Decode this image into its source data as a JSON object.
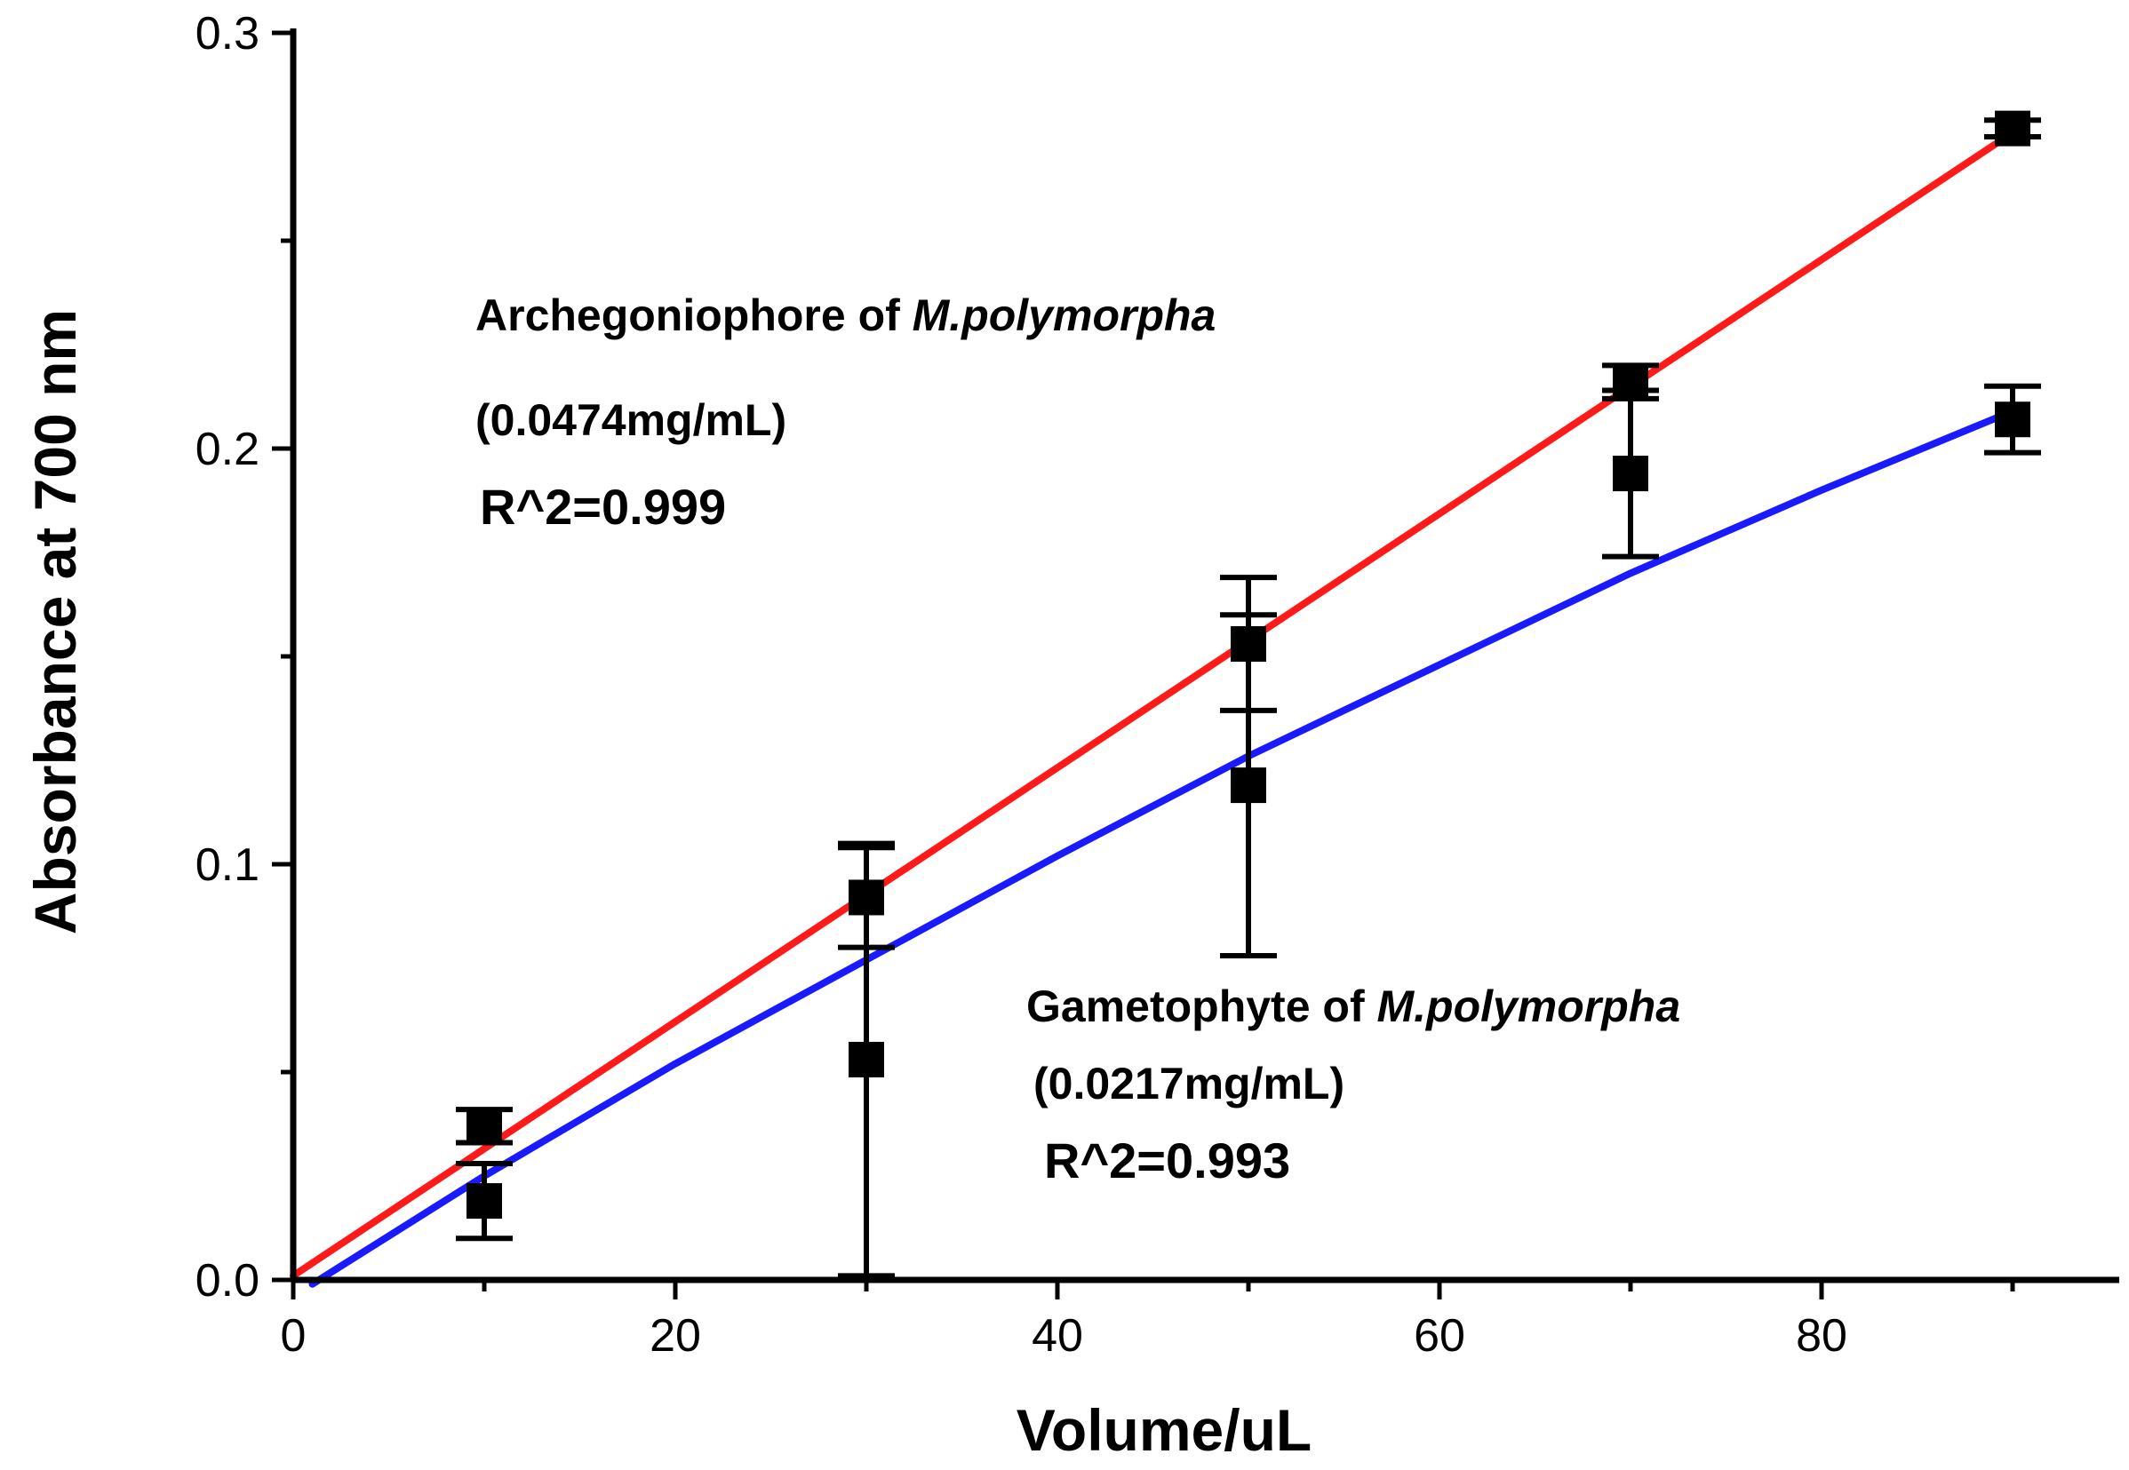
{
  "chart_data": {
    "type": "line",
    "title": "",
    "xlabel": "Volume/uL",
    "ylabel": "Absorbance at 700 nm",
    "xlim": [
      0,
      95
    ],
    "ylim": [
      0,
      0.3
    ],
    "x_ticks": [
      0,
      20,
      40,
      60,
      80
    ],
    "x_tick_labels": [
      "0",
      "20",
      "40",
      "60",
      "80"
    ],
    "y_ticks": [
      0.0,
      0.1,
      0.2,
      0.3
    ],
    "y_tick_labels": [
      "0.0",
      "0.1",
      "0.2",
      "0.3"
    ],
    "grid": false,
    "series": [
      {
        "color": "#ff1a1a",
        "x": [
          10,
          30,
          50,
          70,
          90
        ],
        "y": [
          0.037,
          0.092,
          0.153,
          0.216,
          0.277
        ],
        "error": [
          0.004,
          0.012,
          0.016,
          0.004,
          0.002
        ],
        "fit": {
          "x": [
            0,
            90
          ],
          "y": [
            0.001,
            0.276
          ]
        },
        "annotation": {
          "name_plain": "Archegoniophore of ",
          "name_italic": "M.polymorpha",
          "concentration": "(0.0474mg/mL)",
          "r2": "R^2=0.999"
        }
      },
      {
        "color": "#1a1aff",
        "x": [
          10,
          30,
          50,
          70,
          90
        ],
        "y": [
          0.019,
          0.053,
          0.119,
          0.194,
          0.207
        ],
        "error": [
          0.009,
          0.052,
          0.041,
          0.02,
          0.008
        ],
        "fit": {
          "x": [
            1,
            10,
            20,
            30,
            40,
            50,
            60,
            70,
            80,
            90
          ],
          "y": [
            -0.001,
            0.025,
            0.052,
            0.077,
            0.102,
            0.126,
            0.148,
            0.17,
            0.19,
            0.209
          ]
        },
        "annotation": {
          "name_plain": "Gametophyte of ",
          "name_italic": "M.polymorpha",
          "concentration": "(0.0217mg/mL)",
          "r2": "R^2=0.993"
        }
      }
    ]
  }
}
